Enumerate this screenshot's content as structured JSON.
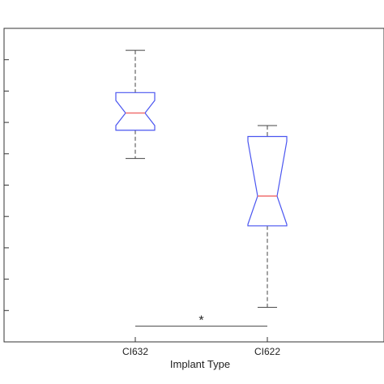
{
  "chart_data": {
    "type": "boxplot",
    "notched": true,
    "xlabel": "Implant Type",
    "ylabel": "",
    "categories": [
      "CI632",
      "CI622"
    ],
    "y_ticks_labeled": false,
    "ylim": [
      0,
      10
    ],
    "boxes": [
      {
        "category": "CI632",
        "whisker_low": 5.85,
        "q1": 6.75,
        "median": 7.3,
        "notch_low": 6.9,
        "notch_high": 7.7,
        "q3": 7.95,
        "whisker_high": 9.3
      },
      {
        "category": "CI622",
        "whisker_low": 1.1,
        "q1": 3.7,
        "median": 4.65,
        "notch_low": 3.75,
        "notch_high": 6.4,
        "q3": 6.55,
        "whisker_high": 6.9
      }
    ],
    "significance": {
      "between": [
        "CI632",
        "CI622"
      ],
      "marker": "*",
      "y": 0.5
    },
    "colors": {
      "box": "#4a55f0",
      "median": "#f07070",
      "whisker": "#444444",
      "axis": "#333333"
    }
  }
}
